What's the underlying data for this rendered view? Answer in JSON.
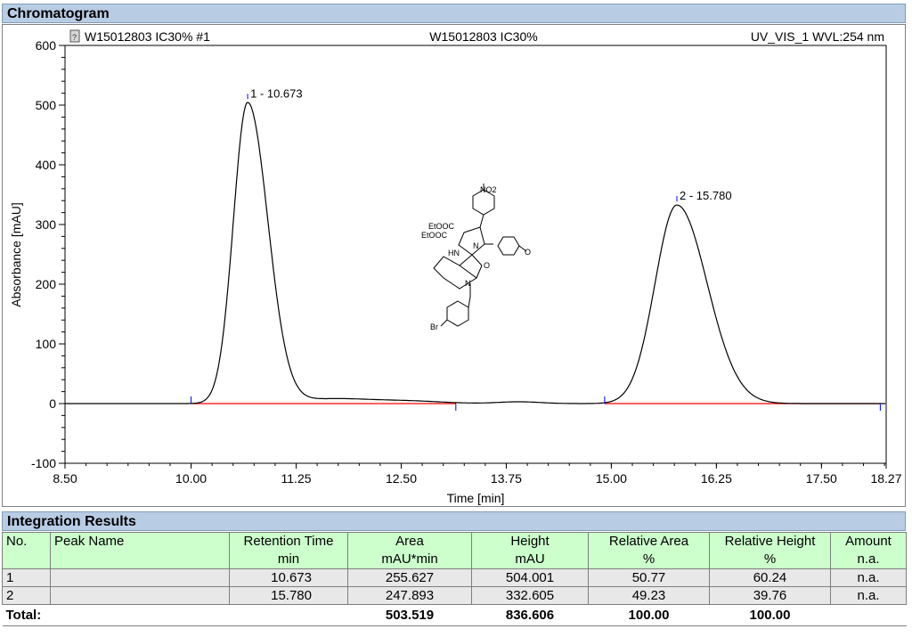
{
  "chromatogram": {
    "section_title": "Chromatogram",
    "header_left": "W15012803 IC30% #1",
    "header_center": "W15012803 IC30%",
    "header_right": "UV_VIS_1 WVL:254 nm"
  },
  "chart_data": {
    "type": "line",
    "title": "W15012803 IC30%",
    "xlabel": "Time [min]",
    "ylabel": "Absorbance [mAU]",
    "xlim": [
      8.5,
      18.27
    ],
    "ylim": [
      -100,
      600
    ],
    "x_ticks": [
      "8.50",
      "10.00",
      "11.25",
      "12.50",
      "13.75",
      "15.00",
      "16.25",
      "17.50",
      "18.27"
    ],
    "x_tick_values": [
      8.5,
      10.0,
      11.25,
      12.5,
      13.75,
      15.0,
      16.25,
      17.5,
      18.27
    ],
    "y_ticks": [
      "-100",
      "0",
      "100",
      "200",
      "300",
      "400",
      "500",
      "600"
    ],
    "y_tick_values": [
      -100,
      0,
      100,
      200,
      300,
      400,
      500,
      600
    ],
    "trace_color": "#000000",
    "baseline_color": "#ff0000",
    "marker_color": "#0000ff",
    "peaks": [
      {
        "label": "1 - 10.673",
        "time": 10.673,
        "height": 504.001
      },
      {
        "label": "2 - 15.780",
        "time": 15.78,
        "height": 332.605
      }
    ],
    "baseline_segments": [
      [
        10.0,
        13.15
      ],
      [
        14.92,
        18.2
      ]
    ],
    "structure_labels": {
      "nitro": "NO2",
      "ester1": "EtOOC",
      "ester2": "EtOOC",
      "nh": "HN",
      "n1": "N",
      "n2": "N",
      "carbonyl": "O",
      "methoxy": "O",
      "bromo": "Br"
    }
  },
  "integration": {
    "section_title": "Integration Results",
    "headers": {
      "no": "No.",
      "peak_name": "Peak Name",
      "rt": "Retention Time",
      "area": "Area",
      "height": "Height",
      "rel_area": "Relative Area",
      "rel_height": "Relative Height",
      "amount": "Amount"
    },
    "units": {
      "rt": "min",
      "area": "mAU*min",
      "height": "mAU",
      "rel_area": "%",
      "rel_height": "%",
      "amount": "n.a."
    },
    "rows": [
      {
        "no": "1",
        "peak_name": "",
        "rt": "10.673",
        "area": "255.627",
        "height": "504.001",
        "rel_area": "50.77",
        "rel_height": "60.24",
        "amount": "n.a."
      },
      {
        "no": "2",
        "peak_name": "",
        "rt": "15.780",
        "area": "247.893",
        "height": "332.605",
        "rel_area": "49.23",
        "rel_height": "39.76",
        "amount": "n.a."
      }
    ],
    "total": {
      "label": "Total:",
      "area": "503.519",
      "height": "836.606",
      "rel_area": "100.00",
      "rel_height": "100.00"
    }
  }
}
